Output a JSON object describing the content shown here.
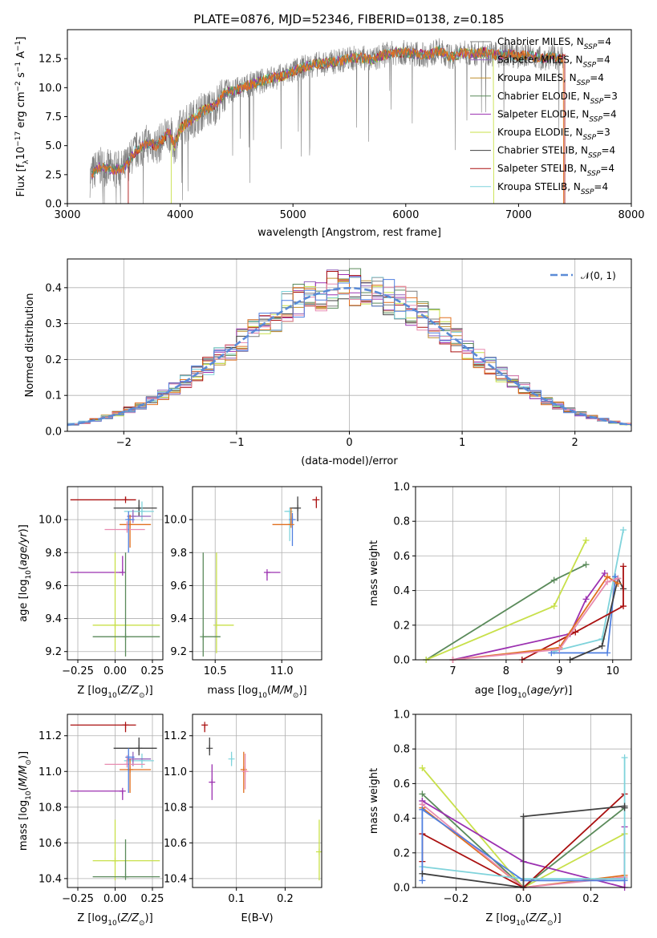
{
  "figure_title": "PLATE=0876, MJD=52346, FIBERID=0138, z=0.185",
  "colors": {
    "Chabrier MILES": "#7f7f7f",
    "Salpeter MILES": "#9467bd",
    "Kroupa MILES": "#bf8f2f",
    "Chabrier ELODIE": "#5a8a5a",
    "Salpeter ELODIE": "#9b30b0",
    "Kroupa ELODIE": "#c8e04a",
    "Chabrier STELIB": "#404040",
    "Salpeter STELIB": "#aa1010",
    "Kroupa STELIB": "#7fd3db",
    "gaussian": "#5b8bd6",
    "orange_series": "#e07020",
    "pink_series": "#e88cb0",
    "blue_series": "#4f7fe0"
  },
  "chart_data": [
    {
      "type": "line",
      "title": "PLATE=0876, MJD=52346, FIBERID=0138, z=0.185",
      "xlabel": "wavelength [Angstrom, rest frame]",
      "ylabel": "Flux [f_λ 10^-17 erg cm^-2 s^-1 A^-1]",
      "xlim": [
        3000,
        8000
      ],
      "ylim": [
        0,
        15
      ],
      "xticks": [
        "3000",
        "4000",
        "5000",
        "6000",
        "7000",
        "8000"
      ],
      "yticks": [
        "0.0",
        "2.5",
        "5.0",
        "7.5",
        "10.0",
        "12.5"
      ],
      "grid": false,
      "legend_position": "top-right",
      "legend": [
        {
          "label": "Chabrier MILES, N_SSP=4",
          "color_key": "Chabrier MILES"
        },
        {
          "label": "Salpeter MILES, N_SSP=4",
          "color_key": "Salpeter MILES"
        },
        {
          "label": "Kroupa MILES, N_SSP=4",
          "color_key": "Kroupa MILES"
        },
        {
          "label": "Chabrier ELODIE, N_SSP=3",
          "color_key": "Chabrier ELODIE"
        },
        {
          "label": "Salpeter ELODIE, N_SSP=4",
          "color_key": "Salpeter ELODIE"
        },
        {
          "label": "Kroupa ELODIE, N_SSP=3",
          "color_key": "Kroupa ELODIE"
        },
        {
          "label": "Chabrier STELIB, N_SSP=4",
          "color_key": "Chabrier STELIB"
        },
        {
          "label": "Salpeter STELIB, N_SSP=4",
          "color_key": "Salpeter STELIB"
        },
        {
          "label": "Kroupa STELIB, N_SSP=4",
          "color_key": "Kroupa STELIB"
        }
      ],
      "spectrum_model": [
        [
          3200,
          2.2
        ],
        [
          3250,
          3.0
        ],
        [
          3300,
          3.2
        ],
        [
          3400,
          2.9
        ],
        [
          3500,
          3.0
        ],
        [
          3600,
          4.5
        ],
        [
          3700,
          5.2
        ],
        [
          3800,
          5.0
        ],
        [
          3900,
          6.2
        ],
        [
          3950,
          5.0
        ],
        [
          4000,
          6.5
        ],
        [
          4100,
          7.2
        ],
        [
          4200,
          8.0
        ],
        [
          4300,
          8.3
        ],
        [
          4400,
          9.6
        ],
        [
          4500,
          9.8
        ],
        [
          4600,
          10.2
        ],
        [
          4700,
          10.5
        ],
        [
          4800,
          10.8
        ],
        [
          4900,
          11.0
        ],
        [
          5000,
          11.4
        ],
        [
          5100,
          11.8
        ],
        [
          5200,
          12.0
        ],
        [
          5300,
          12.1
        ],
        [
          5400,
          12.3
        ],
        [
          5500,
          12.5
        ],
        [
          5600,
          12.6
        ],
        [
          5700,
          12.4
        ],
        [
          5800,
          12.8
        ],
        [
          5900,
          13.0
        ],
        [
          6000,
          13.0
        ],
        [
          6100,
          12.9
        ],
        [
          6200,
          12.8
        ],
        [
          6300,
          13.2
        ],
        [
          6400,
          12.6
        ],
        [
          6500,
          13.0
        ],
        [
          6600,
          12.9
        ],
        [
          6700,
          13.1
        ],
        [
          6800,
          12.8
        ],
        [
          6900,
          12.9
        ],
        [
          7000,
          12.7
        ],
        [
          7100,
          12.8
        ],
        [
          7200,
          12.5
        ],
        [
          7300,
          12.7
        ],
        [
          7400,
          12.4
        ]
      ]
    },
    {
      "type": "histogram",
      "xlabel": "(data-model)/error",
      "ylabel": "Normed distribution",
      "xlim": [
        -2.5,
        2.5
      ],
      "ylim": [
        0,
        0.48
      ],
      "xticks": [
        "−2",
        "−1",
        "0",
        "1",
        "2"
      ],
      "yticks": [
        "0.0",
        "0.1",
        "0.2",
        "0.3",
        "0.4"
      ],
      "grid": true,
      "legend_position": "top-right",
      "legend": [
        {
          "label": "𝒩(0, 1)",
          "color_key": "gaussian"
        }
      ]
    },
    {
      "type": "scatter",
      "xlabel": "Z [log10(Z/Z⊙)]",
      "ylabel": "age [log10(age/yr)]",
      "xlim": [
        -0.32,
        0.32
      ],
      "ylim": [
        9.15,
        10.2
      ],
      "xticks": [
        "−0.25",
        "0.00",
        "0.25"
      ],
      "yticks": [
        "9.2",
        "9.4",
        "9.6",
        "9.8",
        "10.0"
      ],
      "grid": true,
      "points": [
        {
          "x": 0.07,
          "y": 10.12,
          "xerr": [
            0.37,
            0.07
          ],
          "yerr": [
            0.0,
            0.02
          ],
          "color_key": "Salpeter STELIB"
        },
        {
          "x": 0.16,
          "y": 10.07,
          "xerr": [
            0.17,
            0.12
          ],
          "yerr": [
            0.05,
            0.05
          ],
          "color_key": "Chabrier STELIB"
        },
        {
          "x": 0.18,
          "y": 10.05,
          "xerr": [
            0.12,
            0.08
          ],
          "yerr": [
            0.06,
            0.06
          ],
          "color_key": "Kroupa STELIB"
        },
        {
          "x": 0.12,
          "y": 10.02,
          "xerr": [
            0.04,
            0.12
          ],
          "yerr": [
            0.04,
            0.04
          ],
          "color_key": "Salpeter MILES"
        },
        {
          "x": 0.1,
          "y": 9.97,
          "xerr": [
            0.07,
            0.14
          ],
          "yerr": [
            0.14,
            0.06
          ],
          "color_key": "orange_series"
        },
        {
          "x": 0.08,
          "y": 9.94,
          "xerr": [
            0.15,
            0.12
          ],
          "yerr": [
            0.0,
            0.05
          ],
          "color_key": "pink_series"
        },
        {
          "x": 0.09,
          "y": 10.0,
          "xerr": [
            0.0,
            0.04
          ],
          "yerr": [
            0.2,
            0.05
          ],
          "color_key": "blue_series"
        },
        {
          "x": 0.05,
          "y": 9.68,
          "xerr": [
            0.35,
            0.0
          ],
          "yerr": [
            0.0,
            0.1
          ],
          "color_key": "Salpeter ELODIE"
        },
        {
          "x": 0.0,
          "y": 9.36,
          "xerr": [
            0.15,
            0.3
          ],
          "yerr": [
            0.16,
            0.44
          ],
          "color_key": "Kroupa ELODIE"
        },
        {
          "x": 0.07,
          "y": 9.29,
          "xerr": [
            0.22,
            0.23
          ],
          "yerr": [
            0.12,
            0.51
          ],
          "color_key": "Chabrier ELODIE"
        }
      ]
    },
    {
      "type": "scatter",
      "xlabel": "mass [log10(M/M⊙)]",
      "ylabel": "",
      "xlim": [
        10.33,
        11.3
      ],
      "ylim": [
        9.15,
        10.2
      ],
      "xticks": [
        "10.5",
        "11.0"
      ],
      "yticks": [
        "9.2",
        "9.4",
        "9.6",
        "9.8",
        "10.0"
      ],
      "grid": true,
      "points": [
        {
          "x": 11.26,
          "y": 10.12,
          "xerr": [
            0.03,
            0.0
          ],
          "yerr": [
            0.05,
            0.0
          ],
          "color_key": "Salpeter STELIB"
        },
        {
          "x": 11.12,
          "y": 10.07,
          "xerr": [
            0.06,
            0.0
          ],
          "yerr": [
            0.08,
            0.07
          ],
          "color_key": "Chabrier STELIB"
        },
        {
          "x": 11.06,
          "y": 10.05,
          "xerr": [
            0.04,
            0.0
          ],
          "yerr": [
            0.18,
            0.0
          ],
          "color_key": "Kroupa STELIB"
        },
        {
          "x": 11.08,
          "y": 10.0,
          "xerr": [
            0.0,
            0.0
          ],
          "yerr": [
            0.16,
            0.04
          ],
          "color_key": "blue_series"
        },
        {
          "x": 11.07,
          "y": 9.97,
          "xerr": [
            0.14,
            0.0
          ],
          "yerr": [
            0.0,
            0.1
          ],
          "color_key": "orange_series"
        },
        {
          "x": 10.89,
          "y": 9.68,
          "xerr": [
            0.0,
            0.1
          ],
          "yerr": [
            0.05,
            0.0
          ],
          "color_key": "Salpeter ELODIE"
        },
        {
          "x": 10.51,
          "y": 9.36,
          "xerr": [
            0.0,
            0.13
          ],
          "yerr": [
            0.17,
            0.44
          ],
          "color_key": "Kroupa ELODIE"
        },
        {
          "x": 10.41,
          "y": 9.29,
          "xerr": [
            0.0,
            0.13
          ],
          "yerr": [
            0.12,
            0.51
          ],
          "color_key": "Chabrier ELODIE"
        }
      ]
    },
    {
      "type": "line",
      "xlabel": "age [log10(age/yr)]",
      "ylabel": "mass weight",
      "xlim": [
        6.3,
        10.35
      ],
      "ylim": [
        0,
        1
      ],
      "xticks": [
        "7",
        "8",
        "9",
        "10"
      ],
      "yticks": [
        "0.0",
        "0.2",
        "0.4",
        "0.6",
        "0.8",
        "1.0"
      ],
      "grid": true,
      "series": [
        {
          "color_key": "Chabrier ELODIE",
          "x": [
            6.5,
            8.9,
            9.5
          ],
          "y": [
            0.0,
            0.46,
            0.55
          ]
        },
        {
          "color_key": "Kroupa ELODIE",
          "x": [
            6.5,
            8.9,
            9.5
          ],
          "y": [
            0.0,
            0.31,
            0.69
          ]
        },
        {
          "color_key": "Salpeter ELODIE",
          "x": [
            7.0,
            9.2,
            9.5,
            9.85
          ],
          "y": [
            0.0,
            0.15,
            0.35,
            0.5
          ]
        },
        {
          "color_key": "Kroupa STELIB",
          "x": [
            8.9,
            9.8,
            10.2
          ],
          "y": [
            0.05,
            0.12,
            0.75
          ]
        },
        {
          "color_key": "blue_series",
          "x": [
            8.85,
            9.9,
            10.05
          ],
          "y": [
            0.04,
            0.04,
            0.48
          ]
        },
        {
          "color_key": "Chabrier STELIB",
          "x": [
            9.2,
            9.8,
            10.1,
            10.2
          ],
          "y": [
            0.0,
            0.08,
            0.47,
            0.41
          ]
        },
        {
          "color_key": "Salpeter STELIB",
          "x": [
            8.3,
            9.3,
            10.2,
            10.2
          ],
          "y": [
            0.0,
            0.16,
            0.31,
            0.54
          ]
        },
        {
          "color_key": "orange_series",
          "x": [
            7.0,
            9.0,
            9.9,
            10.1
          ],
          "y": [
            0.0,
            0.07,
            0.48,
            0.44
          ]
        },
        {
          "color_key": "pink_series",
          "x": [
            7.0,
            9.0,
            9.9,
            10.1
          ],
          "y": [
            0.0,
            0.06,
            0.45,
            0.47
          ]
        }
      ]
    },
    {
      "type": "scatter",
      "xlabel": "Z [log10(Z/Z⊙)]",
      "ylabel": "mass [log10(M/M⊙)]",
      "xlim": [
        -0.32,
        0.32
      ],
      "ylim": [
        10.35,
        11.32
      ],
      "xticks": [
        "−0.25",
        "0.00",
        "0.25"
      ],
      "yticks": [
        "10.4",
        "10.6",
        "10.8",
        "11.0",
        "11.2"
      ],
      "grid": true,
      "points": [
        {
          "x": 0.07,
          "y": 11.26,
          "xerr": [
            0.37,
            0.07
          ],
          "yerr": [
            0.04,
            0.0
          ],
          "color_key": "Salpeter STELIB"
        },
        {
          "x": 0.16,
          "y": 11.13,
          "xerr": [
            0.17,
            0.12
          ],
          "yerr": [
            0.04,
            0.06
          ],
          "color_key": "Chabrier STELIB"
        },
        {
          "x": 0.18,
          "y": 11.06,
          "xerr": [
            0.12,
            0.08
          ],
          "yerr": [
            0.04,
            0.04
          ],
          "color_key": "Kroupa STELIB"
        },
        {
          "x": 0.12,
          "y": 11.07,
          "xerr": [
            0.04,
            0.12
          ],
          "yerr": [
            0.04,
            0.04
          ],
          "color_key": "Salpeter MILES"
        },
        {
          "x": 0.1,
          "y": 11.01,
          "xerr": [
            0.07,
            0.14
          ],
          "yerr": [
            0.13,
            0.06
          ],
          "color_key": "orange_series"
        },
        {
          "x": 0.08,
          "y": 11.04,
          "xerr": [
            0.15,
            0.12
          ],
          "yerr": [
            0.0,
            0.05
          ],
          "color_key": "pink_series"
        },
        {
          "x": 0.09,
          "y": 11.08,
          "xerr": [
            0.0,
            0.04
          ],
          "yerr": [
            0.2,
            0.05
          ],
          "color_key": "blue_series"
        },
        {
          "x": 0.05,
          "y": 10.89,
          "xerr": [
            0.35,
            0.0
          ],
          "yerr": [
            0.05,
            0.0
          ],
          "color_key": "Salpeter ELODIE"
        },
        {
          "x": 0.0,
          "y": 10.5,
          "xerr": [
            0.15,
            0.3
          ],
          "yerr": [
            0.11,
            0.23
          ],
          "color_key": "Kroupa ELODIE"
        },
        {
          "x": 0.07,
          "y": 10.41,
          "xerr": [
            0.22,
            0.23
          ],
          "yerr": [
            0.0,
            0.21
          ],
          "color_key": "Chabrier ELODIE"
        }
      ]
    },
    {
      "type": "scatter",
      "xlabel": "E(B-V)",
      "ylabel": "",
      "xlim": [
        0.01,
        0.275
      ],
      "ylim": [
        10.35,
        11.32
      ],
      "xticks": [
        "0.1",
        "0.2"
      ],
      "yticks": [
        "10.4",
        "10.6",
        "10.8",
        "11.0",
        "11.2"
      ],
      "grid": true,
      "points": [
        {
          "x": 0.035,
          "y": 11.26,
          "yerr": [
            0.04,
            0.0
          ],
          "color_key": "Salpeter STELIB"
        },
        {
          "x": 0.045,
          "y": 11.13,
          "yerr": [
            0.04,
            0.06
          ],
          "color_key": "Chabrier STELIB"
        },
        {
          "x": 0.05,
          "y": 10.94,
          "yerr": [
            0.1,
            0.1
          ],
          "color_key": "Salpeter ELODIE"
        },
        {
          "x": 0.09,
          "y": 11.07,
          "yerr": [
            0.04,
            0.04
          ],
          "color_key": "Kroupa STELIB"
        },
        {
          "x": 0.115,
          "y": 11.01,
          "yerr": [
            0.13,
            0.1
          ],
          "color_key": "orange_series"
        },
        {
          "x": 0.118,
          "y": 11.0,
          "yerr": [
            0.1,
            0.1
          ],
          "color_key": "pink_series"
        },
        {
          "x": 0.27,
          "y": 10.55,
          "yerr": [
            0.16,
            0.18
          ],
          "color_key": "Kroupa ELODIE"
        }
      ]
    },
    {
      "type": "line",
      "xlabel": "Z [log10(Z/Z⊙)]",
      "ylabel": "mass weight",
      "xlim": [
        -0.32,
        0.32
      ],
      "ylim": [
        0,
        1
      ],
      "xticks": [
        "−0.2",
        "0.0",
        "0.2"
      ],
      "yticks": [
        "0.0",
        "0.2",
        "0.4",
        "0.6",
        "0.8",
        "1.0"
      ],
      "grid": true,
      "series": [
        {
          "color_key": "Kroupa ELODIE",
          "x": [
            -0.3,
            0.0,
            0.3
          ],
          "y": [
            0.69,
            0.0,
            0.31
          ]
        },
        {
          "color_key": "Chabrier ELODIE",
          "x": [
            -0.3,
            0.0,
            0.3
          ],
          "y": [
            0.54,
            0.0,
            0.46
          ]
        },
        {
          "color_key": "Salpeter ELODIE",
          "x": [
            -0.3,
            -0.3,
            0.0,
            0.3,
            0.3
          ],
          "y": [
            0.5,
            0.5,
            0.15,
            0.0,
            0.35
          ]
        },
        {
          "color_key": "orange_series",
          "x": [
            -0.3,
            0.0,
            0.3,
            0.3
          ],
          "y": [
            0.46,
            0.0,
            0.07,
            0.05
          ]
        },
        {
          "color_key": "pink_series",
          "x": [
            -0.3,
            0.0,
            0.3
          ],
          "y": [
            0.48,
            0.0,
            0.06
          ]
        },
        {
          "color_key": "Salpeter STELIB",
          "x": [
            -0.3,
            -0.3,
            0.0,
            0.3
          ],
          "y": [
            0.15,
            0.31,
            0.0,
            0.54
          ]
        },
        {
          "color_key": "Kroupa STELIB",
          "x": [
            -0.3,
            0.0,
            0.3,
            0.3
          ],
          "y": [
            0.12,
            0.05,
            0.05,
            0.75
          ]
        },
        {
          "color_key": "blue_series",
          "x": [
            -0.3,
            -0.3,
            0.0,
            0.3
          ],
          "y": [
            0.04,
            0.45,
            0.04,
            0.04
          ]
        },
        {
          "color_key": "Chabrier STELIB",
          "x": [
            -0.3,
            0.0,
            0.0,
            0.3,
            0.3
          ],
          "y": [
            0.08,
            0.0,
            0.41,
            0.47,
            0.46
          ]
        }
      ]
    }
  ]
}
